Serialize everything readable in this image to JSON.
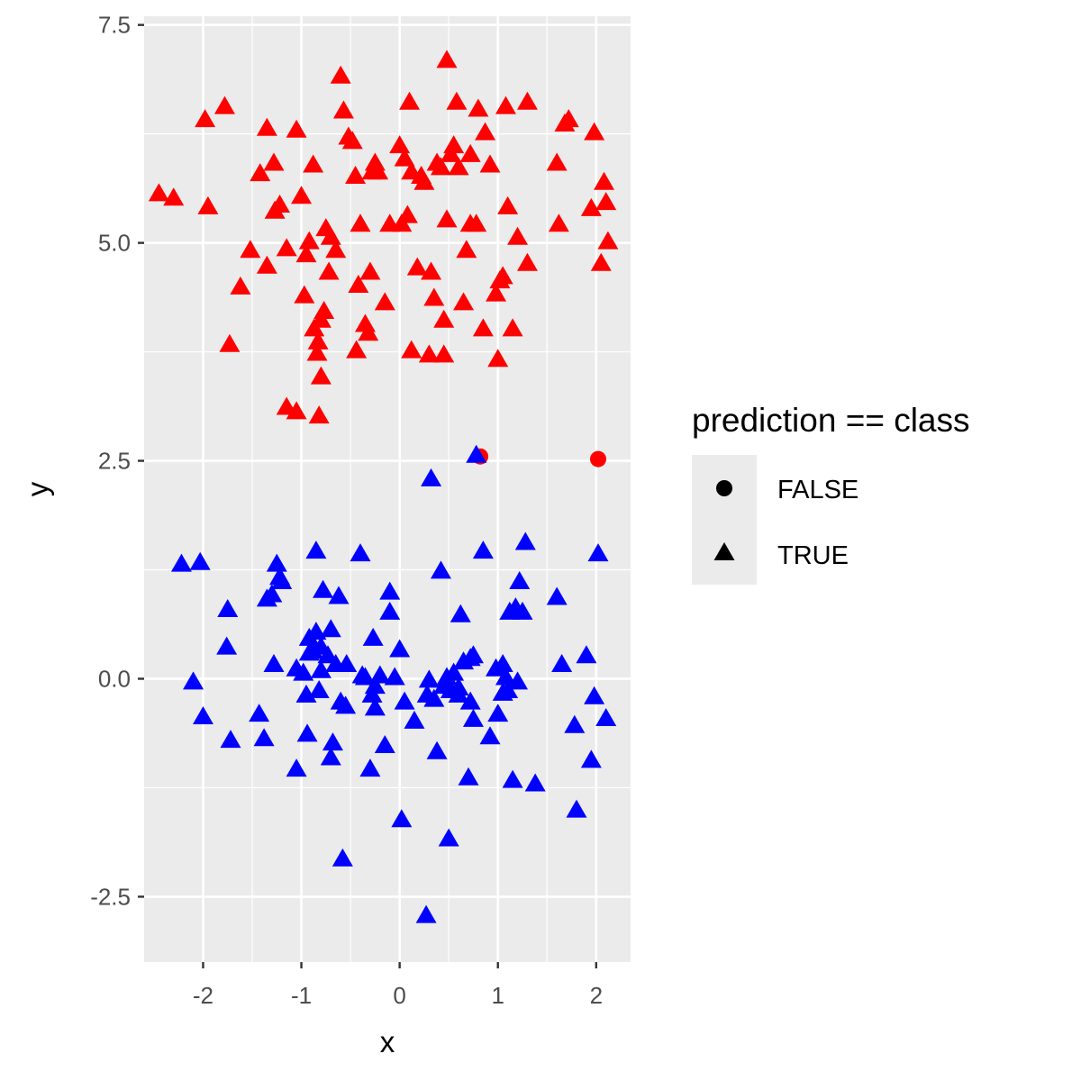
{
  "chart_data": {
    "type": "scatter",
    "title": "",
    "xlabel": "x",
    "ylabel": "y",
    "xlim": [
      -2.6,
      2.35
    ],
    "ylim": [
      -3.25,
      7.6
    ],
    "x_ticks": [
      -2,
      -1,
      0,
      1,
      2
    ],
    "x_tick_labels": [
      "-2",
      "-1",
      "0",
      "1",
      "2"
    ],
    "y_ticks": [
      -2.5,
      0,
      2.5,
      5,
      7.5
    ],
    "y_tick_labels": [
      "-2.5",
      "0.0",
      "2.5",
      "5.0",
      "7.5"
    ],
    "grid": true,
    "legend": {
      "title": "prediction == class",
      "position": "right",
      "entries": [
        {
          "label": "FALSE",
          "shape": "circle"
        },
        {
          "label": "TRUE",
          "shape": "triangle"
        }
      ]
    },
    "colors": {
      "red": "#ff0000",
      "blue": "#0000ff",
      "panel": "#ebebeb",
      "grid": "#ffffff"
    },
    "series": [
      {
        "color": "red",
        "shape": "triangle",
        "points": [
          [
            -2.45,
            5.55
          ],
          [
            -2.3,
            5.5
          ],
          [
            -1.98,
            6.4
          ],
          [
            -1.95,
            5.4
          ],
          [
            -1.78,
            6.55
          ],
          [
            -1.73,
            3.82
          ],
          [
            -1.62,
            4.48
          ],
          [
            -1.52,
            4.9
          ],
          [
            -1.42,
            5.78
          ],
          [
            -1.35,
            4.72
          ],
          [
            -1.35,
            6.3
          ],
          [
            -1.28,
            5.9
          ],
          [
            -1.27,
            5.35
          ],
          [
            -1.22,
            5.42
          ],
          [
            -1.15,
            4.92
          ],
          [
            -1.15,
            3.1
          ],
          [
            -1.05,
            3.05
          ],
          [
            -1.05,
            6.28
          ],
          [
            -1.0,
            5.52
          ],
          [
            -0.97,
            4.38
          ],
          [
            -0.95,
            4.85
          ],
          [
            -0.92,
            5.0
          ],
          [
            -0.88,
            5.88
          ],
          [
            -0.87,
            4.0
          ],
          [
            -0.84,
            3.72
          ],
          [
            -0.83,
            3.85
          ],
          [
            -0.82,
            3.0
          ],
          [
            -0.8,
            4.1
          ],
          [
            -0.8,
            3.45
          ],
          [
            -0.77,
            4.2
          ],
          [
            -0.75,
            5.15
          ],
          [
            -0.72,
            4.65
          ],
          [
            -0.7,
            5.05
          ],
          [
            -0.65,
            4.9
          ],
          [
            -0.6,
            6.9
          ],
          [
            -0.57,
            6.5
          ],
          [
            -0.52,
            6.2
          ],
          [
            -0.48,
            6.15
          ],
          [
            -0.45,
            5.75
          ],
          [
            -0.44,
            3.75
          ],
          [
            -0.42,
            4.5
          ],
          [
            -0.4,
            5.2
          ],
          [
            -0.35,
            4.05
          ],
          [
            -0.32,
            3.95
          ],
          [
            -0.3,
            4.65
          ],
          [
            -0.28,
            5.8
          ],
          [
            -0.25,
            5.9
          ],
          [
            -0.22,
            5.8
          ],
          [
            -0.15,
            4.3
          ],
          [
            -0.1,
            5.2
          ],
          [
            0.0,
            6.1
          ],
          [
            0.02,
            5.2
          ],
          [
            0.05,
            5.95
          ],
          [
            0.08,
            5.3
          ],
          [
            0.1,
            6.6
          ],
          [
            0.12,
            5.8
          ],
          [
            0.12,
            3.75
          ],
          [
            0.18,
            4.7
          ],
          [
            0.22,
            5.75
          ],
          [
            0.25,
            5.68
          ],
          [
            0.3,
            3.7
          ],
          [
            0.32,
            4.65
          ],
          [
            0.35,
            4.35
          ],
          [
            0.38,
            5.9
          ],
          [
            0.42,
            5.85
          ],
          [
            0.45,
            4.1
          ],
          [
            0.45,
            3.7
          ],
          [
            0.48,
            7.08
          ],
          [
            0.48,
            5.25
          ],
          [
            0.52,
            6.0
          ],
          [
            0.55,
            6.1
          ],
          [
            0.58,
            6.6
          ],
          [
            0.6,
            5.85
          ],
          [
            0.65,
            4.3
          ],
          [
            0.68,
            4.9
          ],
          [
            0.72,
            5.2
          ],
          [
            0.72,
            6.0
          ],
          [
            0.78,
            5.2
          ],
          [
            0.8,
            6.52
          ],
          [
            0.85,
            4.0
          ],
          [
            0.87,
            6.25
          ],
          [
            0.92,
            5.88
          ],
          [
            0.98,
            4.4
          ],
          [
            1.0,
            3.65
          ],
          [
            1.02,
            4.55
          ],
          [
            1.05,
            4.6
          ],
          [
            1.08,
            6.55
          ],
          [
            1.1,
            5.4
          ],
          [
            1.15,
            4.0
          ],
          [
            1.2,
            5.05
          ],
          [
            1.3,
            6.6
          ],
          [
            1.3,
            4.75
          ],
          [
            1.6,
            5.9
          ],
          [
            1.62,
            5.2
          ],
          [
            1.68,
            6.35
          ],
          [
            1.72,
            6.4
          ],
          [
            1.95,
            5.38
          ],
          [
            1.98,
            6.25
          ],
          [
            2.05,
            4.75
          ],
          [
            2.08,
            5.68
          ],
          [
            2.1,
            5.45
          ],
          [
            2.12,
            5.0
          ]
        ]
      },
      {
        "color": "red",
        "shape": "circle",
        "points": [
          [
            0.82,
            2.55
          ],
          [
            2.02,
            2.52
          ]
        ]
      },
      {
        "color": "blue",
        "shape": "triangle",
        "points": [
          [
            -2.22,
            1.3
          ],
          [
            -2.03,
            1.32
          ],
          [
            -2.1,
            -0.05
          ],
          [
            -2.0,
            -0.45
          ],
          [
            -1.75,
            0.78
          ],
          [
            -1.76,
            0.35
          ],
          [
            -1.72,
            -0.72
          ],
          [
            -1.43,
            -0.42
          ],
          [
            -1.38,
            -0.7
          ],
          [
            -1.35,
            0.9
          ],
          [
            -1.3,
            0.95
          ],
          [
            -1.28,
            0.15
          ],
          [
            -1.25,
            1.3
          ],
          [
            -1.22,
            1.15
          ],
          [
            -1.2,
            1.1
          ],
          [
            -1.05,
            -1.05
          ],
          [
            -1.05,
            0.1
          ],
          [
            -0.98,
            0.05
          ],
          [
            -0.95,
            -0.2
          ],
          [
            -0.94,
            -0.65
          ],
          [
            -0.92,
            0.45
          ],
          [
            -0.92,
            0.28
          ],
          [
            -0.88,
            0.3
          ],
          [
            -0.85,
            1.45
          ],
          [
            -0.85,
            0.52
          ],
          [
            -0.82,
            -0.15
          ],
          [
            -0.8,
            0.35
          ],
          [
            -0.8,
            0.08
          ],
          [
            -0.78,
            1.0
          ],
          [
            -0.73,
            0.25
          ],
          [
            -0.7,
            0.55
          ],
          [
            -0.7,
            -0.92
          ],
          [
            -0.68,
            -0.75
          ],
          [
            -0.65,
            0.15
          ],
          [
            -0.62,
            0.93
          ],
          [
            -0.6,
            -0.28
          ],
          [
            -0.58,
            -2.08
          ],
          [
            -0.55,
            -0.33
          ],
          [
            -0.54,
            0.15
          ],
          [
            -0.4,
            1.42
          ],
          [
            -0.38,
            0.02
          ],
          [
            -0.35,
            0.0
          ],
          [
            -0.3,
            -1.05
          ],
          [
            -0.28,
            -0.2
          ],
          [
            -0.27,
            0.45
          ],
          [
            -0.25,
            -0.1
          ],
          [
            -0.25,
            -0.35
          ],
          [
            -0.2,
            0.02
          ],
          [
            -0.15,
            -0.78
          ],
          [
            -0.1,
            0.98
          ],
          [
            -0.1,
            0.75
          ],
          [
            -0.05,
            0.0
          ],
          [
            0.0,
            0.32
          ],
          [
            0.02,
            -1.63
          ],
          [
            0.05,
            -0.28
          ],
          [
            0.15,
            -0.5
          ],
          [
            0.27,
            -2.73
          ],
          [
            0.28,
            -0.2
          ],
          [
            0.3,
            -0.03
          ],
          [
            0.32,
            2.28
          ],
          [
            0.35,
            -0.25
          ],
          [
            0.38,
            -0.85
          ],
          [
            0.42,
            1.22
          ],
          [
            0.45,
            -0.1
          ],
          [
            0.48,
            0.0
          ],
          [
            0.5,
            -1.85
          ],
          [
            0.52,
            -0.15
          ],
          [
            0.55,
            0.05
          ],
          [
            0.6,
            -0.12
          ],
          [
            0.6,
            -0.2
          ],
          [
            0.62,
            0.72
          ],
          [
            0.65,
            0.18
          ],
          [
            0.7,
            -1.15
          ],
          [
            0.72,
            0.22
          ],
          [
            0.72,
            -0.28
          ],
          [
            0.75,
            0.25
          ],
          [
            0.75,
            -0.48
          ],
          [
            0.78,
            2.55
          ],
          [
            0.85,
            1.45
          ],
          [
            0.92,
            -0.68
          ],
          [
            0.98,
            0.1
          ],
          [
            1.0,
            -0.42
          ],
          [
            1.05,
            0.15
          ],
          [
            1.05,
            -0.18
          ],
          [
            1.08,
            0.0
          ],
          [
            1.1,
            -0.15
          ],
          [
            1.12,
            0.75
          ],
          [
            1.15,
            -1.18
          ],
          [
            1.18,
            0.8
          ],
          [
            1.2,
            -0.05
          ],
          [
            1.22,
            1.1
          ],
          [
            1.25,
            0.75
          ],
          [
            1.28,
            1.55
          ],
          [
            1.38,
            -1.22
          ],
          [
            1.6,
            0.92
          ],
          [
            1.65,
            0.15
          ],
          [
            1.78,
            -0.55
          ],
          [
            1.8,
            -1.52
          ],
          [
            1.9,
            0.25
          ],
          [
            1.95,
            -0.95
          ],
          [
            1.98,
            -0.22
          ],
          [
            2.02,
            1.42
          ],
          [
            2.1,
            -0.47
          ]
        ]
      }
    ]
  }
}
